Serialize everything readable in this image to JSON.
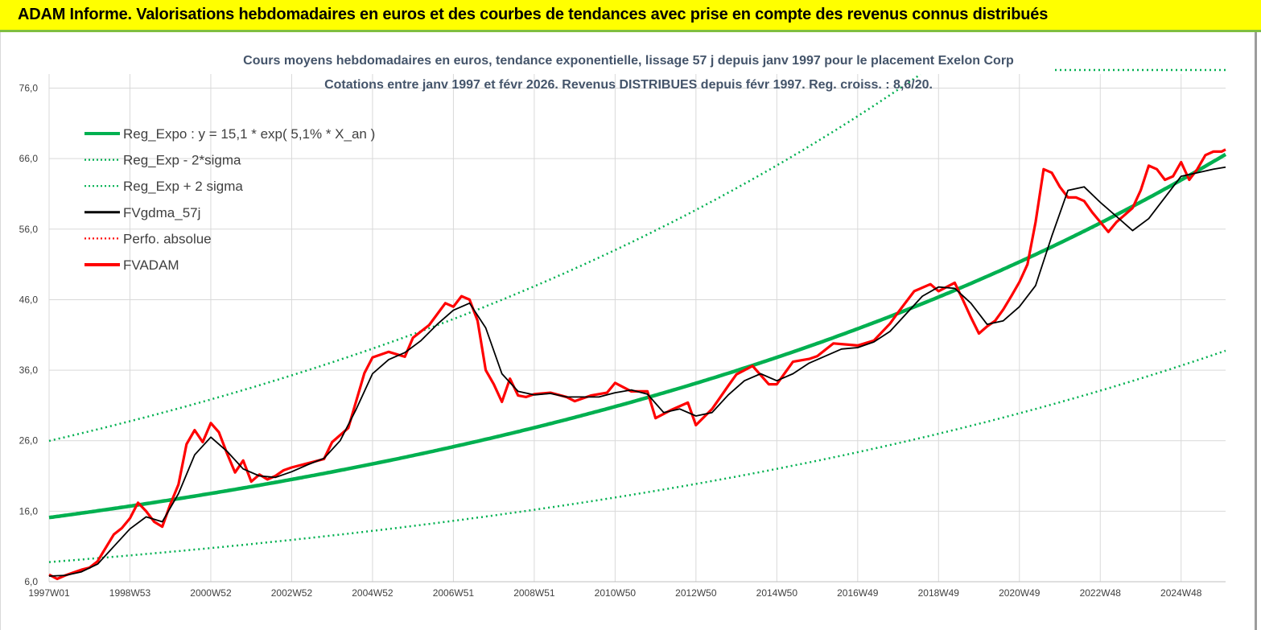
{
  "header": {
    "title": "ADAM Informe. Valorisations hebdomadaires en euros et des courbes de tendances avec prise en compte des revenus connus distribués"
  },
  "chart_data": {
    "type": "line",
    "title_line1": "Cours moyens hebdomadaires en euros, tendance exponentielle, lissage 57 j depuis janv 1997 pour le placement Exelon Corp",
    "title_line2": "Cotations entre janv 1997 et févr 2026. Revenus DISTRIBUES depuis févr 1997. Reg. croiss. : 8,6/20.",
    "xlabel": "",
    "ylabel": "",
    "ylim": [
      6.0,
      78.0
    ],
    "xlim": [
      1997.0,
      2026.1
    ],
    "y_ticks": [
      "6,0",
      "16,0",
      "26,0",
      "36,0",
      "46,0",
      "56,0",
      "66,0",
      "76,0"
    ],
    "y_tick_values": [
      6,
      16,
      26,
      36,
      46,
      56,
      66,
      76
    ],
    "x_ticks": [
      "1997W01",
      "1998W53",
      "2000W52",
      "2002W52",
      "2004W52",
      "2006W51",
      "2008W51",
      "2010W50",
      "2012W50",
      "2014W50",
      "2016W49",
      "2018W49",
      "2020W49",
      "2022W48",
      "2024W48"
    ],
    "x_tick_years": [
      1997.0,
      1999.0,
      2001.0,
      2003.0,
      2005.0,
      2007.0,
      2009.0,
      2011.0,
      2013.0,
      2015.0,
      2017.0,
      2019.0,
      2021.0,
      2023.0,
      2025.0
    ],
    "legend": [
      {
        "label": "Reg_Expo : y = 15,1 * exp( 5,1% *  X_an )",
        "color": "#00b050",
        "style": "solid-thick"
      },
      {
        "label": "Reg_Exp - 2*sigma",
        "color": "#00b050",
        "style": "dotted"
      },
      {
        "label": "Reg_Exp + 2 sigma",
        "color": "#00b050",
        "style": "dotted"
      },
      {
        "label": "FVgdma_57j",
        "color": "#000000",
        "style": "solid"
      },
      {
        "label": "Perfo. absolue",
        "color": "#ff0000",
        "style": "dotted"
      },
      {
        "label": "FVADAM",
        "color": "#ff0000",
        "style": "solid-thick"
      }
    ],
    "regression": {
      "a": 15.1,
      "rate": 0.051,
      "start_year": 1997.0,
      "end_year": 2026.1,
      "upper_factor": 1.72,
      "lower_factor": 0.582
    },
    "series_fvadam": {
      "x": [
        1997.0,
        1997.2,
        1997.4,
        1997.6,
        1997.8,
        1998.0,
        1998.2,
        1998.4,
        1998.6,
        1998.8,
        1999.0,
        1999.2,
        1999.4,
        1999.6,
        1999.8,
        2000.0,
        2000.2,
        2000.4,
        2000.6,
        2000.8,
        2001.0,
        2001.2,
        2001.4,
        2001.6,
        2001.8,
        2002.0,
        2002.2,
        2002.4,
        2002.6,
        2002.8,
        2003.0,
        2003.4,
        2003.8,
        2004.0,
        2004.4,
        2004.8,
        2005.0,
        2005.4,
        2005.8,
        2006.0,
        2006.4,
        2006.8,
        2007.0,
        2007.2,
        2007.4,
        2007.6,
        2007.8,
        2008.0,
        2008.2,
        2008.4,
        2008.6,
        2008.8,
        2009.0,
        2009.4,
        2009.8,
        2010.0,
        2010.4,
        2010.8,
        2011.0,
        2011.4,
        2011.8,
        2012.0,
        2012.4,
        2012.8,
        2013.0,
        2013.4,
        2013.8,
        2014.0,
        2014.4,
        2014.8,
        2015.0,
        2015.4,
        2015.8,
        2016.0,
        2016.4,
        2016.8,
        2017.0,
        2017.4,
        2017.8,
        2018.0,
        2018.4,
        2018.8,
        2019.0,
        2019.4,
        2019.6,
        2019.8,
        2020.0,
        2020.2,
        2020.4,
        2020.6,
        2020.8,
        2021.0,
        2021.2,
        2021.4,
        2021.6,
        2021.8,
        2022.0,
        2022.2,
        2022.4,
        2022.6,
        2022.8,
        2023.0,
        2023.2,
        2023.4,
        2023.6,
        2023.8,
        2024.0,
        2024.2,
        2024.4,
        2024.6,
        2024.8,
        2025.0,
        2025.2,
        2025.4,
        2025.6,
        2025.8,
        2026.0,
        2026.1
      ],
      "y": [
        7.0,
        6.4,
        6.9,
        7.3,
        7.7,
        8.0,
        8.9,
        10.8,
        12.7,
        13.6,
        15.0,
        17.2,
        16.0,
        14.5,
        13.8,
        17.0,
        19.8,
        25.5,
        27.5,
        25.8,
        28.5,
        27.2,
        24.2,
        21.5,
        23.2,
        20.2,
        21.2,
        20.5,
        21.0,
        21.8,
        22.2,
        22.8,
        23.4,
        25.8,
        27.8,
        35.6,
        37.8,
        38.6,
        37.9,
        40.6,
        42.4,
        45.5,
        45.0,
        46.5,
        46.0,
        43.0,
        36.0,
        34.0,
        31.5,
        34.8,
        32.4,
        32.2,
        32.6,
        32.8,
        32.2,
        31.6,
        32.4,
        32.8,
        34.2,
        33.0,
        33.0,
        29.2,
        30.4,
        31.4,
        28.2,
        30.5,
        33.8,
        35.4,
        36.6,
        34.0,
        34.0,
        37.2,
        37.6,
        38.0,
        39.8,
        39.6,
        39.5,
        40.2,
        42.6,
        44.2,
        47.2,
        48.2,
        47.2,
        48.4,
        46.0,
        43.5,
        41.2,
        42.2,
        43.0,
        44.6,
        46.5,
        48.5,
        51.0,
        57.0,
        64.5,
        64.0,
        62.0,
        60.5,
        60.5,
        60.0,
        58.4,
        57.0,
        55.6,
        57.0,
        58.0,
        59.0,
        61.5,
        65.0,
        64.5,
        63.0,
        63.5,
        65.5,
        63.0,
        64.5,
        66.5,
        67.0,
        67.0,
        67.3
      ]
    },
    "series_fvgdma_57j": {
      "x": [
        1997.0,
        1997.4,
        1997.8,
        1998.2,
        1998.6,
        1999.0,
        1999.4,
        1999.8,
        2000.2,
        2000.6,
        2001.0,
        2001.4,
        2001.8,
        2002.2,
        2002.6,
        2003.0,
        2003.4,
        2003.8,
        2004.2,
        2004.6,
        2005.0,
        2005.4,
        2005.8,
        2006.2,
        2006.6,
        2007.0,
        2007.4,
        2007.8,
        2008.2,
        2008.6,
        2009.0,
        2009.4,
        2009.8,
        2010.2,
        2010.6,
        2011.0,
        2011.4,
        2011.8,
        2012.2,
        2012.6,
        2013.0,
        2013.4,
        2013.8,
        2014.2,
        2014.6,
        2015.0,
        2015.4,
        2015.8,
        2016.2,
        2016.6,
        2017.0,
        2017.4,
        2017.8,
        2018.2,
        2018.6,
        2019.0,
        2019.4,
        2019.8,
        2020.2,
        2020.6,
        2021.0,
        2021.4,
        2021.8,
        2022.2,
        2022.6,
        2023.0,
        2023.4,
        2023.8,
        2024.2,
        2024.6,
        2025.0,
        2025.4,
        2025.8,
        2026.1
      ],
      "y": [
        6.8,
        6.9,
        7.4,
        8.5,
        11.0,
        13.5,
        15.2,
        14.5,
        18.5,
        24.0,
        26.5,
        24.5,
        22.0,
        21.0,
        20.8,
        21.6,
        22.6,
        23.5,
        26.0,
        30.5,
        35.5,
        37.5,
        38.5,
        40.2,
        42.5,
        44.5,
        45.5,
        42.0,
        35.5,
        33.0,
        32.5,
        32.7,
        32.2,
        32.2,
        32.2,
        32.8,
        33.2,
        32.6,
        30.0,
        30.5,
        29.5,
        30.0,
        32.5,
        34.5,
        35.5,
        34.5,
        35.5,
        37.0,
        38.0,
        39.0,
        39.2,
        40.0,
        41.5,
        44.0,
        46.5,
        47.8,
        47.6,
        45.5,
        42.5,
        43.0,
        45.0,
        48.0,
        55.0,
        61.5,
        62.0,
        59.8,
        57.8,
        55.8,
        57.5,
        60.5,
        63.5,
        64.0,
        64.5,
        64.8
      ]
    }
  }
}
